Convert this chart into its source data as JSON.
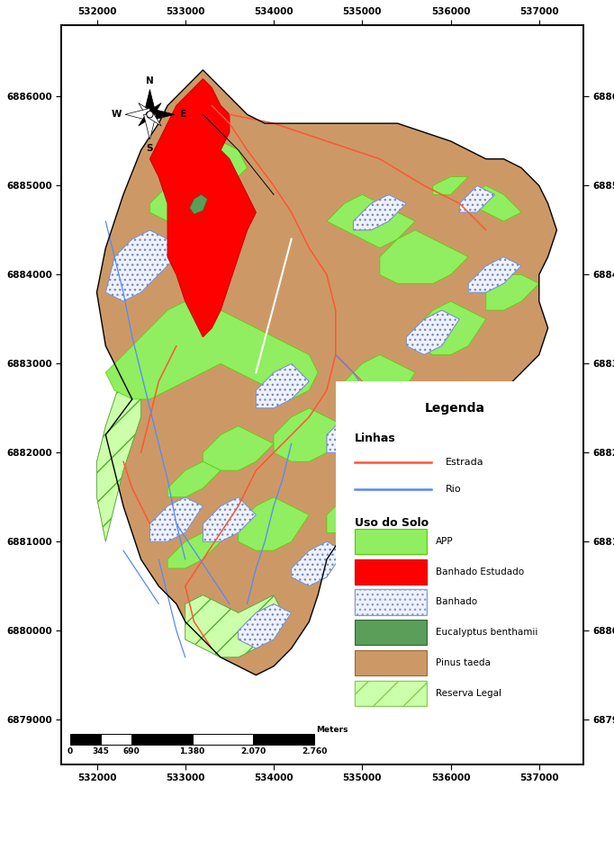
{
  "x_ticks": [
    532000,
    533000,
    534000,
    535000,
    536000,
    537000
  ],
  "y_ticks": [
    6879000,
    6880000,
    6881000,
    6882000,
    6883000,
    6884000,
    6885000,
    6886000
  ],
  "xlim": [
    531600,
    537500
  ],
  "ylim": [
    6878500,
    6886800
  ],
  "bg_color": "#ffffff",
  "legend_title": "Legenda",
  "legend_linhas": "Linhas",
  "legend_uso": "Uso do Solo",
  "estrada_color": "#ff5533",
  "rio_color": "#5588ff",
  "app_color": "#90ee60",
  "banhado_estudado_color": "#ff0000",
  "eucalyptus_color": "#5a9e5a",
  "pinus_color": "#cc9966",
  "reserva_color": "#ccffaa",
  "scale_labels": [
    "0",
    "345",
    "690",
    "1.380",
    "2.070",
    "2.760"
  ],
  "scale_unit": "Meters"
}
